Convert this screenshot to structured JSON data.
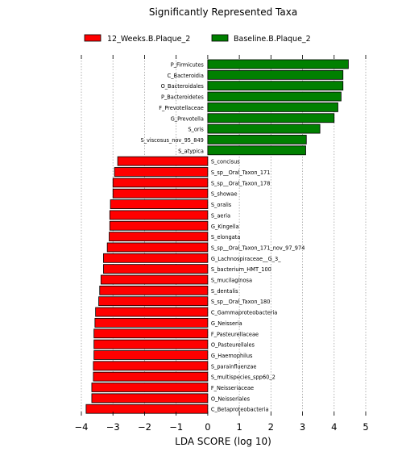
{
  "chart_data": {
    "type": "bar",
    "orientation": "horizontal",
    "title": "Significantly Represented Taxa",
    "xlabel": "LDA SCORE (log 10)",
    "ylabel": "",
    "xlim": [
      -4,
      5
    ],
    "xticks": [
      -4,
      -3,
      -2,
      -1,
      0,
      1,
      2,
      3,
      4,
      5
    ],
    "xtick_labels": [
      "−4",
      "−3",
      "−2",
      "−1",
      "0",
      "1",
      "2",
      "3",
      "4",
      "5"
    ],
    "grid": "vertical dotted",
    "legend_position": "top",
    "series": [
      {
        "name": "12_Weeks.B.Plaque_2",
        "color": "#ff0000",
        "categories": [
          "S_concisus",
          "S_sp__Oral_Taxon_171",
          "S_sp__Oral_Taxon_178",
          "S_showae",
          "S_oralis",
          "S_aeria",
          "G_Kingella",
          "S_elongata",
          "S_sp__Oral_Taxon_171_nov_97_974",
          "G_Lachnospiraceae__G_3_",
          "S_bacterium_HMT_100",
          "S_mucilaginosa",
          "S_dentalis",
          "S_sp__Oral_Taxon_180",
          "C_Gammaproteobacteria",
          "G_Neisseria",
          "F_Pasteurellaceae",
          "O_Pasteurellales",
          "G_Haemophilus",
          "S_parainfluenzae",
          "S_multispecies_spp60_2",
          "F_Neisseriaceae",
          "O_Neisseriales",
          "C_Betaproteobacteria"
        ],
        "values": [
          -2.85,
          -2.95,
          -3.0,
          -3.0,
          -3.08,
          -3.1,
          -3.1,
          -3.12,
          -3.18,
          -3.3,
          -3.3,
          -3.38,
          -3.42,
          -3.45,
          -3.55,
          -3.57,
          -3.6,
          -3.6,
          -3.6,
          -3.62,
          -3.62,
          -3.67,
          -3.67,
          -3.85
        ]
      },
      {
        "name": "Baseline.B.Plaque_2",
        "color": "#008000",
        "categories": [
          "P_Firmicutes",
          "C_Bacteroidia",
          "O_Bacteroidales",
          "P_Bacteroidetes",
          "F_Prevotellaceae",
          "G_Prevotella",
          "S_oris",
          "S_viscosus_nov_95_849",
          "S_atypica"
        ],
        "values": [
          4.45,
          4.28,
          4.28,
          4.22,
          4.12,
          4.0,
          3.55,
          3.12,
          3.1
        ]
      }
    ]
  }
}
